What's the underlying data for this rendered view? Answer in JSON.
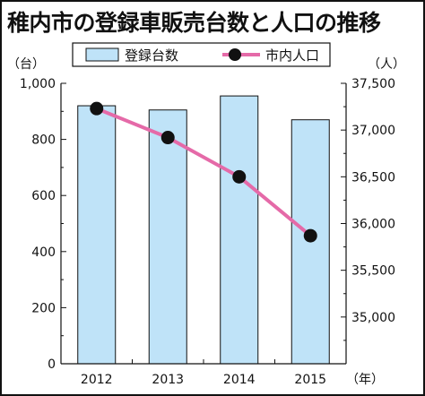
{
  "title": "稚内市の登録車販売台数と人口の推移",
  "chart_data": {
    "type": "bar+line",
    "categories": [
      "2012",
      "2013",
      "2014",
      "2015"
    ],
    "x_unit": "（年）",
    "series": [
      {
        "name": "登録台数",
        "type": "bar",
        "axis": "left",
        "values": [
          920,
          905,
          955,
          870
        ],
        "color": "#bfe3f8",
        "stroke": "#111111"
      },
      {
        "name": "市内人口",
        "type": "line",
        "axis": "right",
        "values": [
          37230,
          36920,
          36500,
          35870
        ],
        "color": "#e56aa8",
        "marker_color": "#111111"
      }
    ],
    "y_left": {
      "unit": "（台）",
      "ylim": [
        0,
        1000
      ],
      "ticks": [
        0,
        200,
        400,
        600,
        800,
        1000
      ],
      "tick_labels": [
        "0",
        "200",
        "400",
        "600",
        "800",
        "1,000"
      ]
    },
    "y_right": {
      "unit": "（人）",
      "ylim": [
        34500,
        37500
      ],
      "ticks": [
        35000,
        35500,
        36000,
        36500,
        37000,
        37500
      ],
      "tick_labels": [
        "35,000",
        "35,500",
        "36,000",
        "36,500",
        "37,000",
        "37,500"
      ]
    },
    "legend": {
      "position": "top",
      "items": [
        "登録台数",
        "市内人口"
      ]
    },
    "grid": false
  }
}
